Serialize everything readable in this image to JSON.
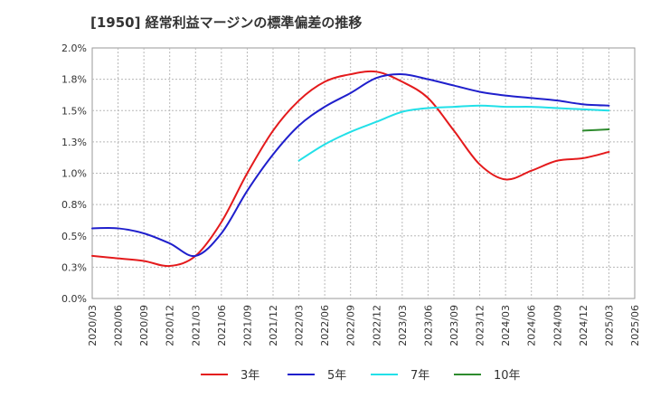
{
  "chart_data": {
    "type": "line",
    "title": "[1950]  経常利益マージンの標準偏差の推移",
    "xlabel": "",
    "ylabel": "",
    "ylim": [
      0,
      2.0
    ],
    "y_ticks": [
      "0.0%",
      "0.3%",
      "0.5%",
      "0.8%",
      "1.0%",
      "1.3%",
      "1.5%",
      "1.8%",
      "2.0%"
    ],
    "x_ticks": [
      "2020/03",
      "2020/06",
      "2020/09",
      "2020/12",
      "2021/03",
      "2021/06",
      "2021/09",
      "2021/12",
      "2022/03",
      "2022/06",
      "2022/09",
      "2022/12",
      "2023/03",
      "2023/06",
      "2023/09",
      "2023/12",
      "2024/03",
      "2024/06",
      "2024/09",
      "2024/12",
      "2025/03",
      "2025/06"
    ],
    "grid": true,
    "legend_position": "bottom",
    "series": [
      {
        "name": "3年",
        "color": "#e41a1c",
        "x": [
          "2020/03",
          "2020/06",
          "2020/09",
          "2020/12",
          "2021/03",
          "2021/06",
          "2021/09",
          "2021/12",
          "2022/03",
          "2022/06",
          "2022/09",
          "2022/12",
          "2023/03",
          "2023/06",
          "2023/09",
          "2023/12",
          "2024/03",
          "2024/06",
          "2024/09",
          "2024/12",
          "2025/03"
        ],
        "values": [
          0.34,
          0.32,
          0.3,
          0.26,
          0.34,
          0.61,
          1.0,
          1.34,
          1.58,
          1.73,
          1.79,
          1.81,
          1.73,
          1.6,
          1.34,
          1.07,
          0.95,
          1.02,
          1.1,
          1.12,
          1.17
        ]
      },
      {
        "name": "5年",
        "color": "#1f1fcc",
        "x": [
          "2020/03",
          "2020/06",
          "2020/09",
          "2020/12",
          "2021/03",
          "2021/06",
          "2021/09",
          "2021/12",
          "2022/03",
          "2022/06",
          "2022/09",
          "2022/12",
          "2023/03",
          "2023/06",
          "2023/09",
          "2023/12",
          "2024/03",
          "2024/06",
          "2024/09",
          "2024/12",
          "2025/03"
        ],
        "values": [
          0.56,
          0.56,
          0.52,
          0.44,
          0.34,
          0.52,
          0.86,
          1.15,
          1.38,
          1.53,
          1.64,
          1.76,
          1.79,
          1.75,
          1.7,
          1.65,
          1.62,
          1.6,
          1.58,
          1.55,
          1.54
        ]
      },
      {
        "name": "7年",
        "color": "#22e0e8",
        "x": [
          "2022/03",
          "2022/06",
          "2022/09",
          "2022/12",
          "2023/03",
          "2023/06",
          "2023/09",
          "2023/12",
          "2024/03",
          "2024/06",
          "2024/09",
          "2024/12",
          "2025/03"
        ],
        "values": [
          1.1,
          1.23,
          1.33,
          1.41,
          1.49,
          1.52,
          1.53,
          1.54,
          1.53,
          1.53,
          1.52,
          1.51,
          1.5
        ]
      },
      {
        "name": "10年",
        "color": "#2e8b2e",
        "x": [
          "2024/12",
          "2025/03"
        ],
        "values": [
          1.34,
          1.35
        ]
      }
    ]
  }
}
